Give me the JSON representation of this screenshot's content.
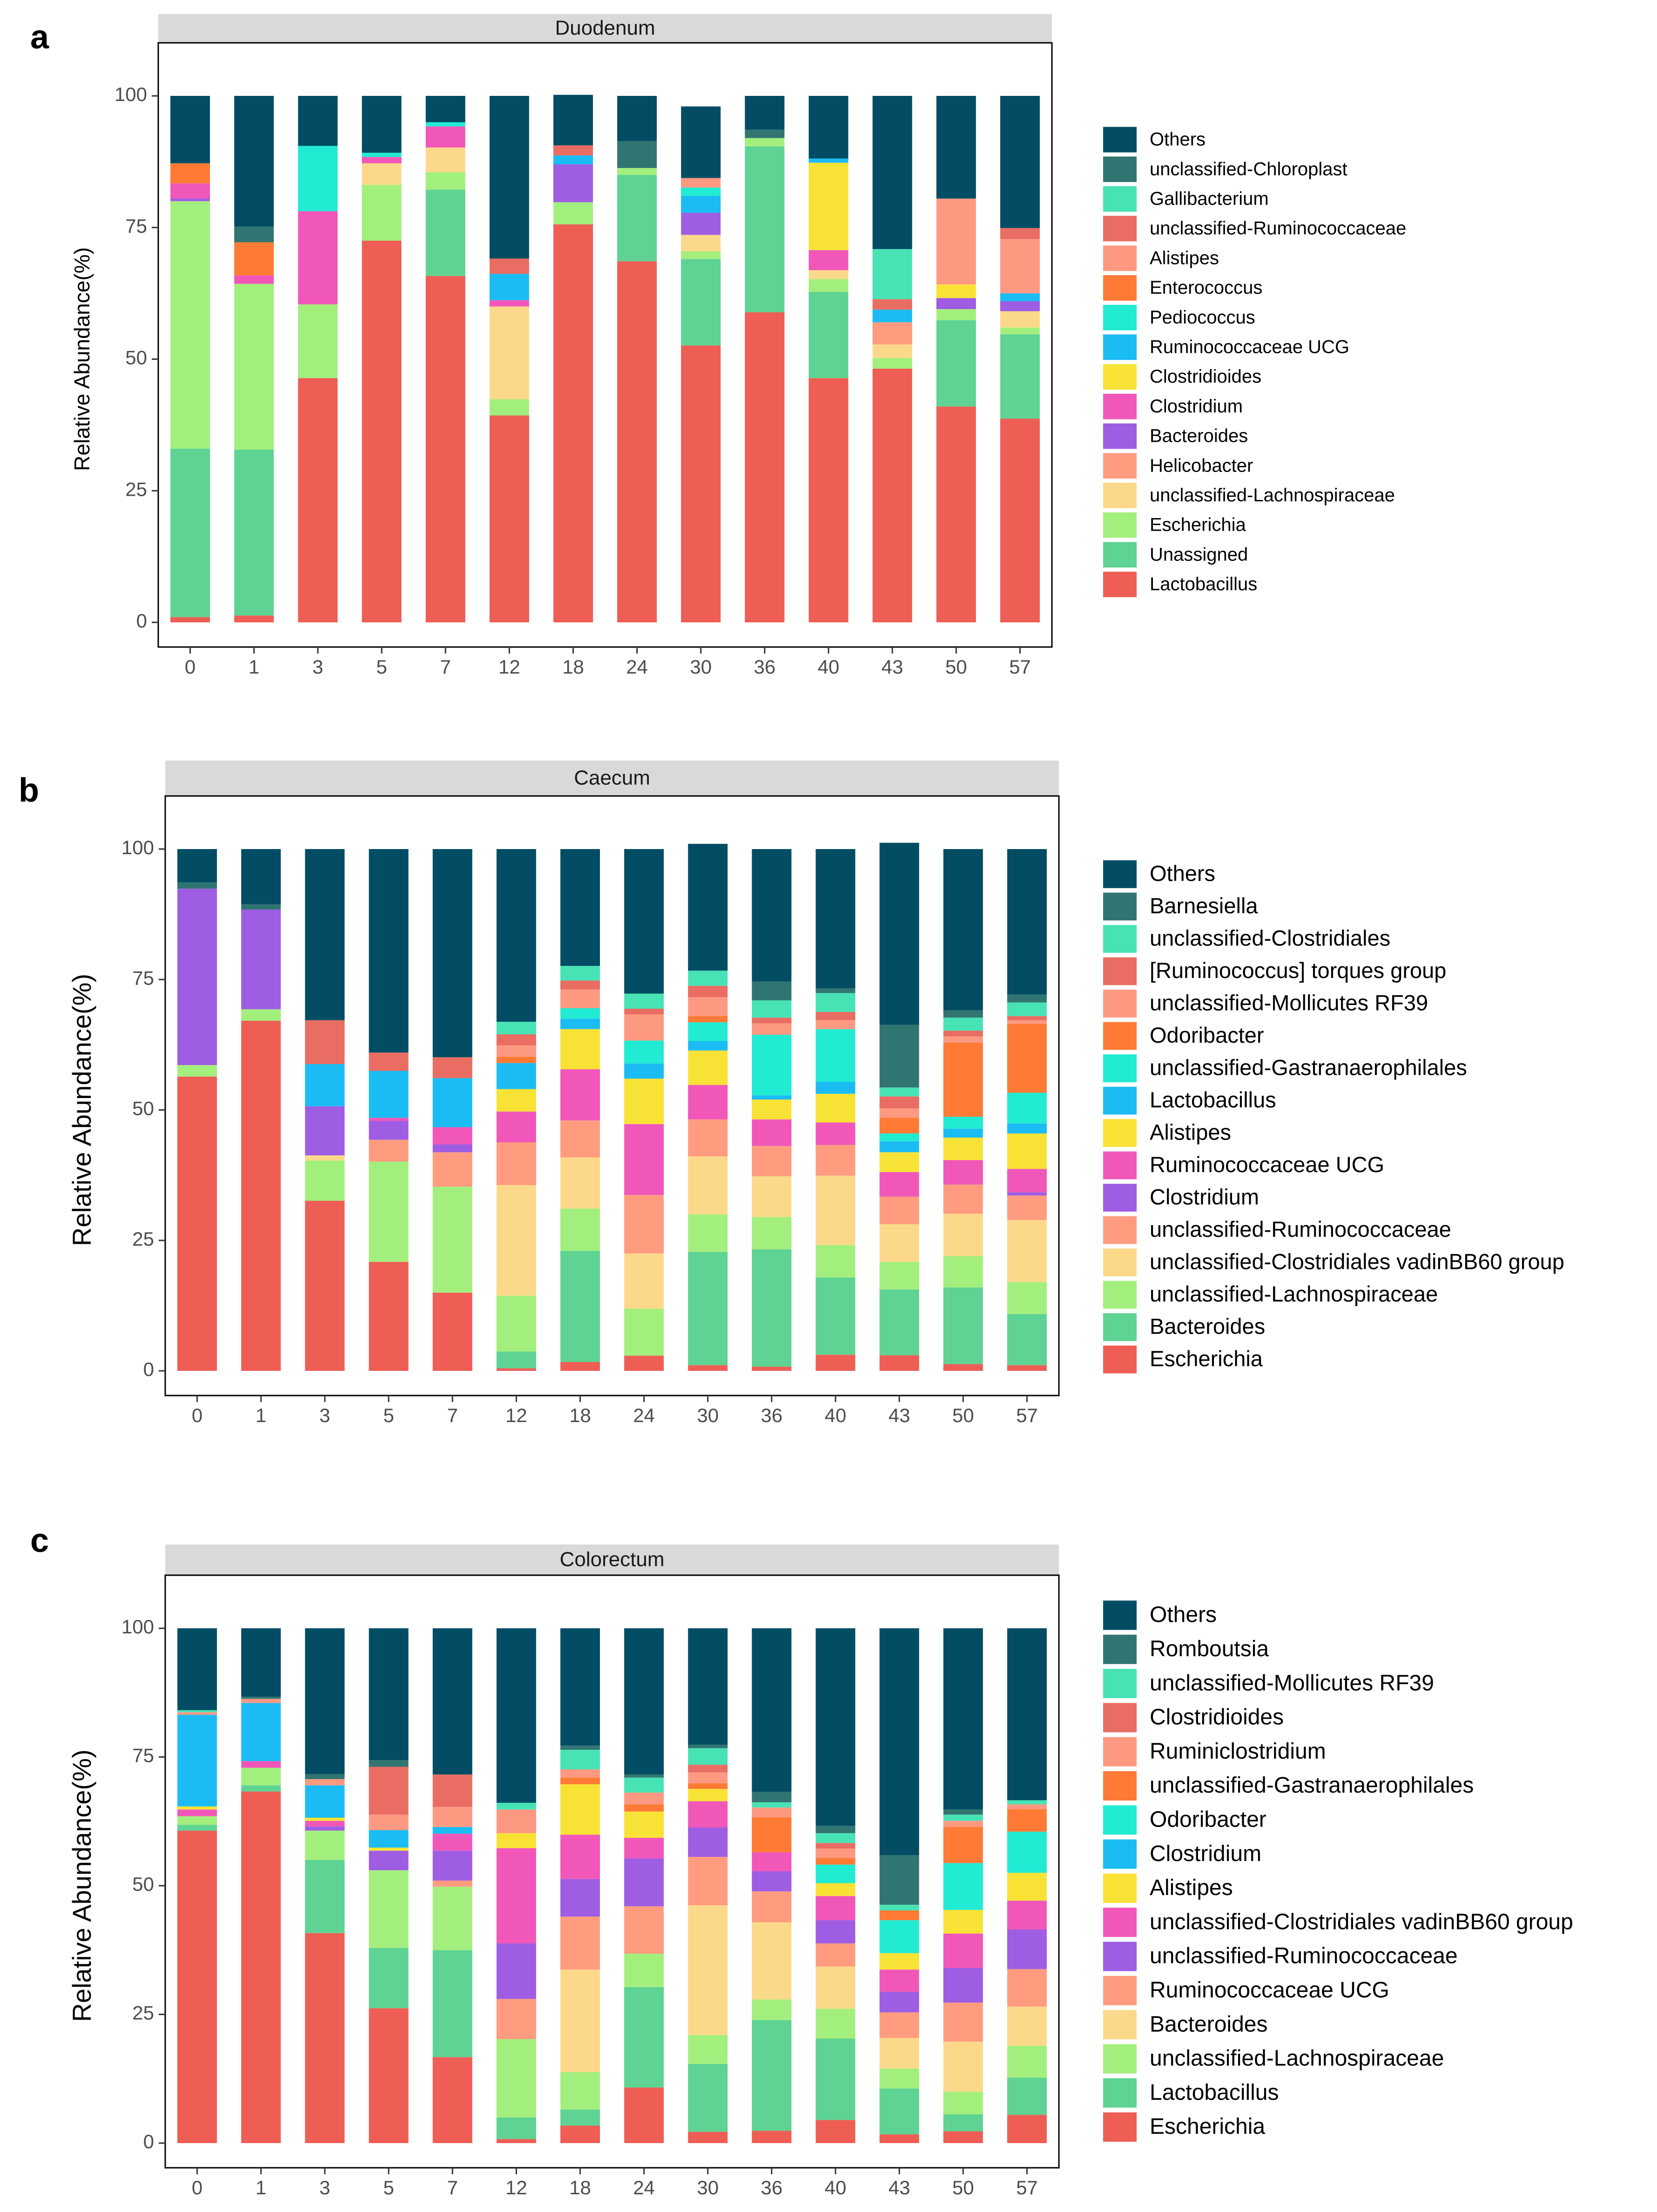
{
  "chart_data": [
    {
      "panel_letter": "a",
      "strip_title": "Duodenum",
      "type": "bar",
      "stacked": true,
      "ylabel": "Relative Abundance(%)",
      "ylim": [
        0,
        100
      ],
      "yticks": [
        "0",
        "25",
        "50",
        "75",
        "100"
      ],
      "categories": [
        "0",
        "1",
        "3",
        "5",
        "7",
        "12",
        "18",
        "24",
        "30",
        "36",
        "40",
        "43",
        "50",
        "57"
      ],
      "series": [
        {
          "name": "Lactobacillus",
          "color": "#EE5E55",
          "values": [
            1,
            1.3,
            46.4,
            72.5,
            65.8,
            39.3,
            75.6,
            68.6,
            52.6,
            58.9,
            46.4,
            48.2,
            41,
            38.7
          ]
        },
        {
          "name": "Unassigned",
          "color": "#5ED393",
          "values": [
            32,
            31.5,
            0,
            0,
            16.4,
            0,
            0,
            16.4,
            16.4,
            31.5,
            16.4,
            0,
            16.4,
            16
          ]
        },
        {
          "name": "Escherichia",
          "color": "#A3EF7D",
          "values": [
            47,
            31.5,
            14,
            10.6,
            3.3,
            3.1,
            4.2,
            1.3,
            1.5,
            1.6,
            2.4,
            2,
            2.1,
            1.3
          ]
        },
        {
          "name": "unclassified-Lachnospiraceae",
          "color": "#FCD98A",
          "values": [
            0,
            0,
            0,
            4.1,
            4.7,
            17.6,
            0,
            0,
            3.1,
            0,
            1.7,
            2.6,
            0,
            3.1
          ]
        },
        {
          "name": "Helicobacter",
          "color": "#FF9C80",
          "values": [
            0,
            0,
            0,
            0,
            0,
            0,
            0,
            0,
            0,
            0,
            0,
            4.2,
            0,
            0
          ]
        },
        {
          "name": "Bacteroides",
          "color": "#9E5DE3",
          "values": [
            0.5,
            0,
            0,
            0,
            0,
            0,
            7.2,
            0,
            4.2,
            0,
            0,
            0,
            2.1,
            1.9
          ]
        },
        {
          "name": "Clostridium",
          "color": "#F157B8",
          "values": [
            2.9,
            1.6,
            17.7,
            1.2,
            4,
            1.2,
            0,
            0,
            0,
            0,
            3.8,
            0,
            0,
            0
          ]
        },
        {
          "name": "Clostridioides",
          "color": "#F9E236",
          "values": [
            0,
            0,
            0,
            0,
            0,
            0,
            0,
            0,
            0,
            0,
            16.6,
            0,
            2.6,
            0
          ]
        },
        {
          "name": "Ruminococcaceae UCG",
          "color": "#1BBCF3",
          "values": [
            0,
            0,
            0,
            0,
            0,
            5,
            1.7,
            0,
            3.2,
            0,
            0.8,
            2.4,
            0,
            1.5
          ]
        },
        {
          "name": "Pediococcus",
          "color": "#21EBD2",
          "values": [
            0,
            0,
            12.4,
            0.8,
            0.8,
            0,
            0,
            0,
            1.6,
            0,
            0,
            0,
            0,
            0
          ]
        },
        {
          "name": "Enterococcus",
          "color": "#FE7A35",
          "values": [
            3.8,
            6.3,
            0,
            0,
            0,
            0,
            0,
            0,
            0,
            0,
            0,
            0,
            0,
            0
          ]
        },
        {
          "name": "Alistipes",
          "color": "#FE9981",
          "values": [
            0,
            0,
            0,
            0,
            0,
            0,
            0,
            0,
            1.8,
            0,
            0,
            0,
            16.3,
            10.3
          ]
        },
        {
          "name": "unclassified-Ruminococcaceae",
          "color": "#E96D63",
          "values": [
            0,
            0,
            0,
            0,
            0,
            2.9,
            1.9,
            0,
            0,
            0,
            0,
            2,
            0,
            2.1
          ]
        },
        {
          "name": "Gallibacterium",
          "color": "#48E3B5",
          "values": [
            0,
            0,
            0,
            0,
            0,
            0,
            0,
            0,
            0,
            0,
            0,
            9.5,
            0,
            0
          ]
        },
        {
          "name": "unclassified-Chloroplast",
          "color": "#317572",
          "values": [
            0,
            3,
            0,
            0,
            0,
            0,
            0,
            5.1,
            0,
            1.6,
            0,
            0,
            0,
            0
          ]
        },
        {
          "name": "Others",
          "color": "#024D64",
          "values": [
            12.8,
            24.8,
            9.5,
            10.8,
            5,
            30.9,
            9.6,
            8.6,
            13.6,
            6.4,
            11.9,
            29.1,
            19.5,
            25.1
          ]
        }
      ]
    },
    {
      "panel_letter": "b",
      "strip_title": "Caecum",
      "type": "bar",
      "stacked": true,
      "ylabel": "Relative Abundance(%)",
      "ylim": [
        0,
        100
      ],
      "yticks": [
        "0",
        "25",
        "50",
        "75",
        "100"
      ],
      "categories": [
        "0",
        "1",
        "3",
        "5",
        "7",
        "12",
        "18",
        "24",
        "30",
        "36",
        "40",
        "43",
        "50",
        "57"
      ],
      "series": [
        {
          "name": "Escherichia",
          "color": "#EE5E55",
          "values": [
            56.4,
            67.1,
            32.6,
            20.9,
            15,
            0.5,
            1.7,
            2.9,
            1.1,
            0.8,
            3.1,
            3,
            1.3,
            1.1
          ]
        },
        {
          "name": "Bacteroides",
          "color": "#5ED393",
          "values": [
            0,
            0,
            0,
            0,
            0,
            3.2,
            21.3,
            0,
            21.7,
            22.5,
            14.8,
            12.6,
            14.7,
            9.8
          ]
        },
        {
          "name": "unclassified-Lachnospiraceae",
          "color": "#A3EF7D",
          "values": [
            2.2,
            2.2,
            7.7,
            19.2,
            20.3,
            10.7,
            8.1,
            9,
            7.2,
            6.2,
            6.2,
            5.3,
            6,
            6.1
          ]
        },
        {
          "name": "unclassified-Clostridiales vadinBB60 group",
          "color": "#FCD98A",
          "values": [
            0,
            0,
            1,
            0,
            0,
            21.2,
            9.8,
            10.6,
            11.1,
            7.8,
            13.3,
            7.2,
            8.1,
            11.9
          ]
        },
        {
          "name": "unclassified-Ruminococcaceae",
          "color": "#FF9C80",
          "values": [
            0,
            0,
            0,
            4.2,
            6.6,
            8.2,
            7.1,
            11.2,
            7.1,
            5.8,
            5.9,
            5.3,
            5.6,
            4.7
          ]
        },
        {
          "name": "Clostridium",
          "color": "#9E5DE3",
          "values": [
            33.8,
            19.1,
            9.4,
            3.6,
            1.5,
            0,
            0,
            0,
            0,
            0,
            0,
            0,
            0,
            0.6
          ]
        },
        {
          "name": "Ruminococcaceae UCG",
          "color": "#F157B8",
          "values": [
            0,
            0,
            0,
            0.6,
            3.3,
            5.9,
            9.8,
            13.6,
            6.6,
            5.1,
            4.3,
            4.7,
            4.7,
            4.5
          ]
        },
        {
          "name": "Alistipes",
          "color": "#F9E236",
          "values": [
            0,
            0,
            0,
            0,
            0,
            4.3,
            7.7,
            8.7,
            6.6,
            3.8,
            5.5,
            3.8,
            4.3,
            6.8
          ]
        },
        {
          "name": "Lactobacillus",
          "color": "#1BBCF3",
          "values": [
            0,
            0,
            8.1,
            9,
            9.4,
            5,
            2,
            2.9,
            1.8,
            0.8,
            2.3,
            2.1,
            1.7,
            1.9
          ]
        },
        {
          "name": "unclassified-Gastranaerophilales",
          "color": "#21EBD2",
          "values": [
            0,
            0,
            0,
            0,
            0,
            0,
            2,
            4.4,
            3.6,
            11.6,
            10.1,
            1.5,
            2.3,
            5.9
          ]
        },
        {
          "name": "Odoribacter",
          "color": "#FE7A35",
          "values": [
            0,
            0,
            0,
            0,
            0,
            1.2,
            0,
            0,
            1.2,
            0,
            0,
            3,
            14.2,
            13.2
          ]
        },
        {
          "name": "unclassified-Mollicutes RF39",
          "color": "#FE9981",
          "values": [
            0,
            0,
            0,
            0,
            0,
            2.2,
            3.6,
            5,
            3.6,
            2.2,
            1.7,
            1.8,
            1.2,
            0.7
          ]
        },
        {
          "name": "[Ruminococcus] torques group",
          "color": "#E96D63",
          "values": [
            0,
            0,
            8.4,
            3.5,
            4,
            2.1,
            1.7,
            1.1,
            2.2,
            1.1,
            1.6,
            2.3,
            1.1,
            0.8
          ]
        },
        {
          "name": "unclassified-Clostridiales",
          "color": "#48E3B5",
          "values": [
            0,
            0,
            0,
            0,
            0,
            2.4,
            2.8,
            2.9,
            2.9,
            3.3,
            3.6,
            1.7,
            2.5,
            2.6
          ]
        },
        {
          "name": "Barnesiella",
          "color": "#317572",
          "values": [
            1.2,
            1,
            0,
            0,
            0,
            0,
            0,
            0,
            0,
            3.6,
            0.9,
            12,
            1.4,
            1.5
          ]
        },
        {
          "name": "Others",
          "color": "#024D64",
          "values": [
            6.4,
            10.6,
            32.8,
            39,
            39.9,
            33.1,
            22.4,
            27.7,
            24.3,
            25.4,
            26.7,
            34.9,
            30.9,
            27.9
          ]
        }
      ]
    },
    {
      "panel_letter": "c",
      "strip_title": "Colorectum",
      "type": "bar",
      "stacked": true,
      "ylabel": "Relative Abundance(%)",
      "ylim": [
        0,
        100
      ],
      "yticks": [
        "0",
        "25",
        "50",
        "75",
        "100"
      ],
      "categories": [
        "0",
        "1",
        "3",
        "5",
        "7",
        "12",
        "18",
        "24",
        "30",
        "36",
        "40",
        "43",
        "50",
        "57"
      ],
      "series": [
        {
          "name": "Escherichia",
          "color": "#EE5E55",
          "values": [
            60.7,
            68.3,
            40.8,
            26.2,
            16.7,
            0.8,
            3.4,
            10.8,
            2.2,
            2.4,
            4.5,
            1.7,
            2.3,
            5.5
          ]
        },
        {
          "name": "Lactobacillus",
          "color": "#5ED393",
          "values": [
            1.1,
            1.2,
            14.2,
            11.7,
            20.8,
            4.2,
            3.1,
            19.5,
            13.2,
            21.5,
            15.8,
            8.9,
            3.3,
            7.2
          ]
        },
        {
          "name": "unclassified-Lachnospiraceae",
          "color": "#A3EF7D",
          "values": [
            1.7,
            3.4,
            5.7,
            15.1,
            12.3,
            15.2,
            7.3,
            6.5,
            5.6,
            4,
            5.8,
            3.9,
            4.4,
            6.2
          ]
        },
        {
          "name": "Bacteroides",
          "color": "#FCD98A",
          "values": [
            0,
            0,
            0,
            0,
            0,
            0,
            19.9,
            0,
            25.2,
            15,
            8.2,
            5.9,
            9.7,
            7.6
          ]
        },
        {
          "name": "Ruminococcaceae UCG",
          "color": "#FF9C80",
          "values": [
            0,
            0,
            0,
            0,
            1.2,
            7.8,
            10.3,
            9.2,
            9.4,
            6,
            4.5,
            5,
            7.6,
            7.3
          ]
        },
        {
          "name": "unclassified-Ruminococcaceae",
          "color": "#9E5DE3",
          "values": [
            0,
            0,
            0.8,
            3.8,
            5.8,
            10.8,
            7.3,
            9.3,
            5.7,
            3.9,
            4.5,
            4,
            6.7,
            7.7
          ]
        },
        {
          "name": "unclassified-Clostridiales vadinBB60 group",
          "color": "#F157B8",
          "values": [
            1.3,
            1.3,
            1.1,
            0,
            3.3,
            18.5,
            8.6,
            4,
            5.1,
            3.7,
            4.7,
            4.3,
            6.7,
            5.6
          ]
        },
        {
          "name": "Alistipes",
          "color": "#F9E236",
          "values": [
            0.6,
            0,
            0.6,
            0.6,
            0,
            2.9,
            9.8,
            5.1,
            2.4,
            0,
            2.5,
            3.2,
            4.6,
            5.4
          ]
        },
        {
          "name": "Clostridium",
          "color": "#1BBCF3",
          "values": [
            17.8,
            11.3,
            6.3,
            3.4,
            1.3,
            0,
            0,
            0,
            0,
            0,
            0,
            0,
            0,
            0
          ]
        },
        {
          "name": "Odoribacter",
          "color": "#21EBD2",
          "values": [
            0,
            0,
            0,
            0,
            0,
            0,
            0,
            0,
            0,
            0,
            3.6,
            6.4,
            9.1,
            8
          ]
        },
        {
          "name": "unclassified-Gastranaerophilales",
          "color": "#FE7A35",
          "values": [
            0,
            0,
            0,
            0,
            0,
            0,
            1.3,
            1.4,
            1.1,
            6.8,
            1.3,
            1.9,
            7,
            4.4
          ]
        },
        {
          "name": "Ruminiclostridium",
          "color": "#FE9981",
          "values": [
            0.5,
            0.8,
            1.2,
            3,
            3.9,
            4.6,
            1.6,
            2.3,
            2.1,
            1.9,
            1.8,
            0,
            1.2,
            0.9
          ]
        },
        {
          "name": "Clostridioides",
          "color": "#E96D63",
          "values": [
            0,
            0,
            0,
            9.3,
            6.3,
            0,
            0,
            0,
            1.5,
            0,
            1.1,
            0,
            0,
            0
          ]
        },
        {
          "name": "unclassified-Mollicutes RF39",
          "color": "#48E3B5",
          "values": [
            0.4,
            0,
            0,
            0,
            0,
            1.3,
            3.8,
            2.9,
            3.2,
            1,
            1.9,
            1.1,
            1.2,
            0.8
          ]
        },
        {
          "name": "Romboutsia",
          "color": "#317572",
          "values": [
            0,
            0.4,
            1,
            1.3,
            0,
            0,
            0.8,
            0.6,
            0.7,
            2,
            1.4,
            9.6,
            1,
            0
          ]
        },
        {
          "name": "Others",
          "color": "#024D64",
          "values": [
            15.9,
            13.3,
            28.3,
            25.6,
            28.4,
            33.9,
            22.8,
            28.4,
            22.6,
            31.8,
            38.4,
            44.1,
            35.2,
            33.4
          ]
        }
      ]
    }
  ]
}
